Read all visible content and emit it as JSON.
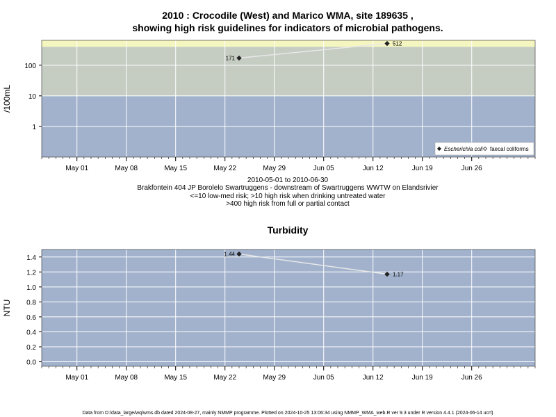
{
  "chart_data": [
    {
      "type": "line",
      "title_lines": [
        "2010 : Crocodile (West) and Marico WMA, site 189635 ,",
        "showing high risk guidelines for indicators of microbial pathogens."
      ],
      "ylabel": "/100mL",
      "y_scale": "log",
      "yticks": [
        "1",
        "10",
        "100"
      ],
      "ytick_values": [
        1,
        10,
        100
      ],
      "ylim": [
        0.1,
        650
      ],
      "x_range": [
        "2010-04-26",
        "2010-07-05"
      ],
      "xticks": [
        "May 01",
        "May 08",
        "May 15",
        "May 22",
        "May 29",
        "Jun 05",
        "Jun 12",
        "Jun 19",
        "Jun 26"
      ],
      "xtick_dates": [
        "2010-05-01",
        "2010-05-08",
        "2010-05-15",
        "2010-05-22",
        "2010-05-29",
        "2010-06-05",
        "2010-06-12",
        "2010-06-19",
        "2010-06-26"
      ],
      "bands": [
        {
          "from": 0.1,
          "to": 10,
          "color": "#a2b2cc"
        },
        {
          "from": 10,
          "to": 400,
          "color": "#c5cdc3"
        },
        {
          "from": 400,
          "to": 650,
          "color": "#f5f5c0"
        }
      ],
      "series": [
        {
          "name": "Escherichia coli",
          "marker": "filled-diamond",
          "points": [
            {
              "x": "2010-05-24",
              "y": 171,
              "label": "171"
            },
            {
              "x": "2010-06-14",
              "y": 512,
              "label": "512"
            }
          ]
        },
        {
          "name": "faecal coliforms",
          "marker": "open-diamond",
          "points": []
        }
      ],
      "legend_position": "bottom-right",
      "caption_lines": [
        "2010-05-01 to 2010-06-30",
        "Brakfontein 404 JP Borolelo Swartruggens - downstream of Swartruggens WWTW on Elandsrivier",
        "<=10 low-med risk; >10 high risk when drinking untreated water",
        ">400 high risk from full or partial contact"
      ],
      "grid": true
    },
    {
      "type": "line",
      "title": "Turbidity",
      "ylabel": "NTU",
      "yticks": [
        "0.0",
        "0.2",
        "0.4",
        "0.6",
        "0.8",
        "1.0",
        "1.2",
        "1.4"
      ],
      "ytick_values": [
        0,
        0.2,
        0.4,
        0.6,
        0.8,
        1.0,
        1.2,
        1.4
      ],
      "ylim": [
        -0.06,
        1.5
      ],
      "x_range": [
        "2010-04-26",
        "2010-07-05"
      ],
      "xticks": [
        "May 01",
        "May 08",
        "May 15",
        "May 22",
        "May 29",
        "Jun 05",
        "Jun 12",
        "Jun 19",
        "Jun 26"
      ],
      "xtick_dates": [
        "2010-05-01",
        "2010-05-08",
        "2010-05-15",
        "2010-05-22",
        "2010-05-29",
        "2010-06-05",
        "2010-06-12",
        "2010-06-19",
        "2010-06-26"
      ],
      "background": "#a2b2cc",
      "series": [
        {
          "marker": "filled-diamond",
          "points": [
            {
              "x": "2010-05-24",
              "y": 1.44,
              "label": "1.44"
            },
            {
              "x": "2010-06-14",
              "y": 1.17,
              "label": "1.17"
            }
          ]
        }
      ],
      "grid": true
    }
  ],
  "footer": "Data from D:/data_large/wq/wms.db dated 2024-08-27, mainly NMMP programme. Plotted on 2024-10-25 13:06:34 using NMMP_WMA_web.R ver 9.3 under R version 4.4.1 (2024-06-14 ucrt)"
}
